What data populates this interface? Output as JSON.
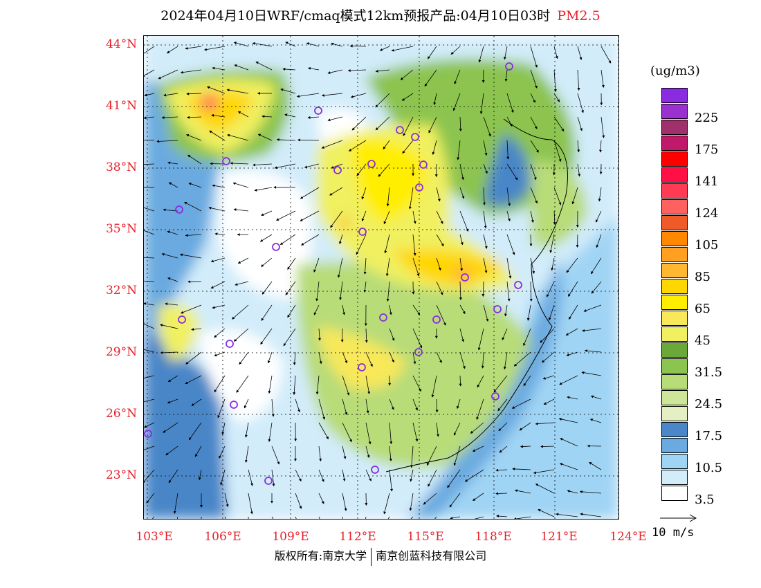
{
  "title": {
    "main": "2024年04月10日WRF/cmaq模式12km预报产品:04月10日03时",
    "species": "PM2.5"
  },
  "axes": {
    "lat_labels": [
      "44°N",
      "41°N",
      "38°N",
      "35°N",
      "32°N",
      "29°N",
      "26°N",
      "23°N"
    ],
    "lon_labels": [
      "103°E",
      "106°E",
      "109°E",
      "112°E",
      "115°E",
      "118°E",
      "121°E",
      "124°E"
    ]
  },
  "colorbar": {
    "unit": "(ug/m3)",
    "levels": [
      {
        "color": "#8a2be2",
        "label": ""
      },
      {
        "color": "#9b30d0",
        "label": "225"
      },
      {
        "color": "#a0306b",
        "label": ""
      },
      {
        "color": "#c0186a",
        "label": "175"
      },
      {
        "color": "#ff0000",
        "label": ""
      },
      {
        "color": "#ff0f46",
        "label": "141"
      },
      {
        "color": "#ff3a55",
        "label": ""
      },
      {
        "color": "#ff6060",
        "label": "124"
      },
      {
        "color": "#f05a28",
        "label": ""
      },
      {
        "color": "#ff8800",
        "label": "105"
      },
      {
        "color": "#ffa020",
        "label": ""
      },
      {
        "color": "#ffb830",
        "label": "85"
      },
      {
        "color": "#ffd700",
        "label": ""
      },
      {
        "color": "#ffee00",
        "label": "65"
      },
      {
        "color": "#f8e85a",
        "label": ""
      },
      {
        "color": "#f0f060",
        "label": "45"
      },
      {
        "color": "#6aa83a",
        "label": ""
      },
      {
        "color": "#8cc450",
        "label": "31.5"
      },
      {
        "color": "#b8dc78",
        "label": ""
      },
      {
        "color": "#cde69a",
        "label": "24.5"
      },
      {
        "color": "#e4f0c4",
        "label": ""
      },
      {
        "color": "#4a86c8",
        "label": "17.5"
      },
      {
        "color": "#6aaae0",
        "label": ""
      },
      {
        "color": "#a0d4f4",
        "label": "10.5"
      },
      {
        "color": "#d2ecfa",
        "label": ""
      },
      {
        "color": "#ffffff",
        "label": "3.5"
      }
    ]
  },
  "wind_reference": {
    "label": "10 m/s"
  },
  "footer": {
    "left": "版权所有:南京大学",
    "right": "南京创蓝科技有限公司"
  }
}
